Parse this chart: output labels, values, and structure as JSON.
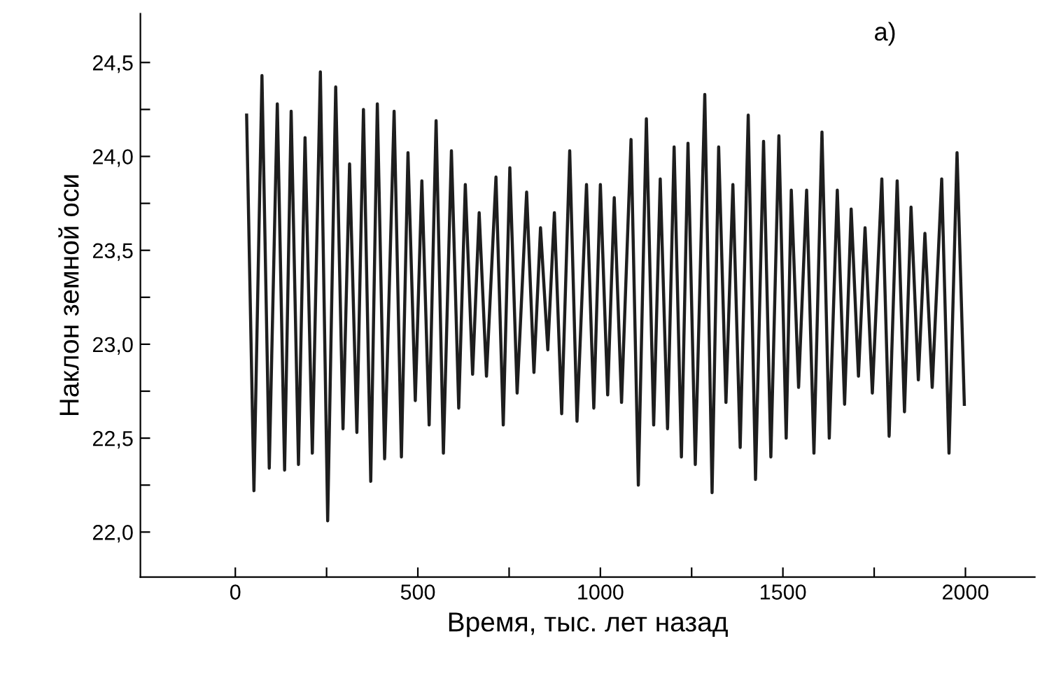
{
  "chart_data": {
    "type": "line",
    "xlabel": "Время, тыс. лет назад",
    "ylabel": "Наклон земной оси",
    "annotations": [
      "a)"
    ],
    "x": [
      31,
      51,
      73,
      93,
      115,
      135,
      153,
      173,
      191,
      211,
      233,
      253,
      275,
      295,
      313,
      333,
      351,
      371,
      389,
      409,
      435,
      455,
      473,
      493,
      511,
      531,
      550,
      570,
      592,
      612,
      630,
      650,
      668,
      688,
      714,
      734,
      752,
      772,
      798,
      818,
      836,
      856,
      874,
      894,
      916,
      936,
      962,
      982,
      1000,
      1020,
      1038,
      1058,
      1084,
      1104,
      1126,
      1146,
      1164,
      1184,
      1202,
      1222,
      1240,
      1260,
      1286,
      1306,
      1324,
      1344,
      1363,
      1383,
      1405,
      1425,
      1447,
      1467,
      1489,
      1509,
      1523,
      1543,
      1565,
      1585,
      1607,
      1627,
      1649,
      1669,
      1687,
      1707,
      1725,
      1745,
      1771,
      1791,
      1813,
      1833,
      1851,
      1871,
      1889,
      1909,
      1935,
      1955,
      1977,
      1997
    ],
    "series": [
      {
        "color": "#1e1e1e",
        "values": [
          24.22,
          22.22,
          24.43,
          22.34,
          24.28,
          22.33,
          24.24,
          22.36,
          24.1,
          22.42,
          24.45,
          22.06,
          24.37,
          22.55,
          23.96,
          22.53,
          24.25,
          22.27,
          24.28,
          22.39,
          24.24,
          22.4,
          24.02,
          22.7,
          23.87,
          22.57,
          24.19,
          22.42,
          24.03,
          22.66,
          23.85,
          22.84,
          23.7,
          22.83,
          23.89,
          22.57,
          23.94,
          22.74,
          23.81,
          22.85,
          23.62,
          22.97,
          23.7,
          22.63,
          24.03,
          22.59,
          23.85,
          22.66,
          23.85,
          22.73,
          23.78,
          22.69,
          24.09,
          22.25,
          24.2,
          22.57,
          23.88,
          22.55,
          24.05,
          22.4,
          24.07,
          22.36,
          24.33,
          22.21,
          24.05,
          22.69,
          23.85,
          22.45,
          24.22,
          22.28,
          24.08,
          22.4,
          24.11,
          22.5,
          23.82,
          22.77,
          23.82,
          22.42,
          24.13,
          22.5,
          23.82,
          22.68,
          23.72,
          22.83,
          23.62,
          22.74,
          23.88,
          22.51,
          23.87,
          22.64,
          23.73,
          22.81,
          23.59,
          22.77,
          23.88,
          22.42,
          24.02,
          22.68
        ]
      }
    ],
    "xlim": [
      -260,
      2190
    ],
    "ylim": [
      21.76,
      24.76
    ],
    "xticks": [
      0,
      {
        "value": 250,
        "label": null
      },
      500,
      {
        "value": 750,
        "label": null
      },
      1000,
      {
        "value": 1250,
        "label": null
      },
      1500,
      {
        "value": 1750,
        "label": null
      },
      2000
    ],
    "yticks": [
      {
        "value": 22.0,
        "label": "22,0"
      },
      {
        "value": 22.25,
        "label": null
      },
      {
        "value": 22.5,
        "label": "22,5"
      },
      {
        "value": 22.75,
        "label": null
      },
      {
        "value": 23.0,
        "label": "23,0"
      },
      {
        "value": 23.25,
        "label": null
      },
      {
        "value": 23.5,
        "label": "23,5"
      },
      {
        "value": 23.75,
        "label": null
      },
      {
        "value": 24.0,
        "label": "24,0"
      },
      {
        "value": 24.25,
        "label": null
      },
      {
        "value": 24.5,
        "label": "24,5"
      }
    ],
    "grid": false,
    "marker": "none",
    "line_style": "solid"
  }
}
